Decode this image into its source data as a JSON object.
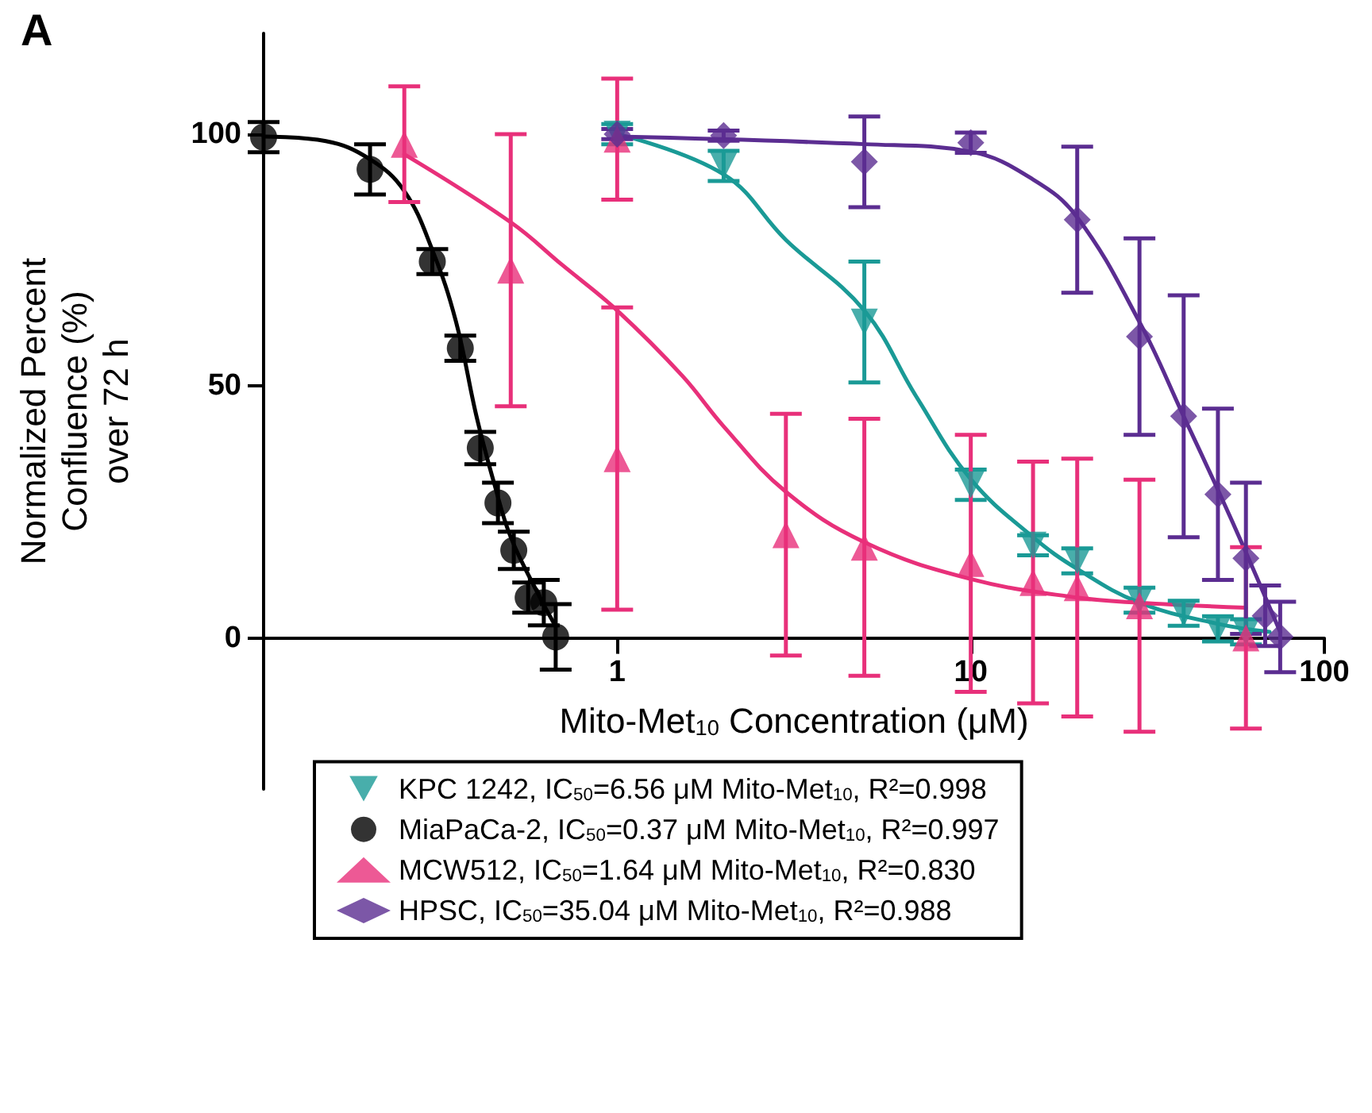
{
  "chart_data": {
    "type": "scatter",
    "title": "A",
    "xlabel": "Mito-Met$_{10}$ Concentration (μM)",
    "ylabel": "Normalized Percent Confluence (%) over 72 h",
    "log": "x",
    "xlim": [
      0.1,
      100
    ],
    "xticks": [
      1,
      10,
      100
    ],
    "ylim": [
      -30,
      120
    ],
    "yticks": [
      0,
      50,
      100
    ],
    "legend": "bottom",
    "series": [
      {
        "name": "KPC 1242, IC$_{50}$=6.56 μM Mito-Met$_{10}$, R²=0.998",
        "marker": "triangle-down",
        "color": "#1a9a96",
        "x": [
          1,
          2,
          5,
          10,
          15,
          20,
          30,
          40,
          50,
          60
        ],
        "values": [
          100,
          93.7,
          62.7,
          30.4,
          18.4,
          15.3,
          7.5,
          4.9,
          1.8,
          1.2
        ],
        "errors": [
          2,
          3,
          12,
          3,
          2,
          2.5,
          2.5,
          2.5,
          2.5,
          2.5
        ]
      },
      {
        "name": "MiaPaCa-2, IC$_{50}$=0.37 μM Mito-Met$_{10}$, R²=0.997",
        "marker": "circle",
        "color": "#000000",
        "x": [
          0.1,
          0.2,
          0.3,
          0.36,
          0.41,
          0.46,
          0.51,
          0.56,
          0.62,
          0.67
        ],
        "values": [
          99.4,
          93,
          74.7,
          57.5,
          37.7,
          26.8,
          17.4,
          8,
          7,
          0.2
        ],
        "errors": [
          3,
          5,
          2.5,
          2.5,
          3.2,
          4,
          3.7,
          3,
          4.5,
          6.5
        ]
      },
      {
        "name": "MCW512, IC$_{50}$=1.64 μM Mito-Met$_{10}$, R²=0.830",
        "marker": "triangle",
        "color": "#e8307a",
        "x": [
          0.25,
          0.5,
          1,
          1,
          3,
          5,
          10,
          15,
          20,
          30,
          60
        ],
        "values": [
          98,
          73,
          99,
          35.6,
          20.5,
          18,
          14.8,
          11,
          10,
          6.4,
          0
        ],
        "errors": [
          11.5,
          27,
          12,
          30,
          24,
          25.5,
          25.5,
          24,
          25.6,
          25,
          18
        ]
      },
      {
        "name": "HPSC, IC$_{50}$=35.04 μM Mito-Met$_{10}$, R²=0.988",
        "marker": "diamond",
        "color": "#5b2d91",
        "x": [
          1,
          2,
          5,
          10,
          20,
          30,
          40,
          50,
          60,
          68,
          75
        ],
        "values": [
          100,
          99.7,
          94.5,
          98.3,
          83,
          59.8,
          44,
          28.5,
          15.8,
          4.4,
          0.2
        ],
        "errors": [
          1,
          1,
          9,
          2,
          14.5,
          19.5,
          24,
          17,
          15,
          6,
          7
        ]
      },
      {
        "type": "line",
        "marker": "none",
        "color": "#1a9a96",
        "x": [
          1,
          2,
          3,
          5,
          7,
          10,
          15,
          20,
          30,
          50,
          70
        ],
        "values": [
          100,
          92,
          79,
          65,
          48,
          31.5,
          20,
          13.7,
          7,
          2.8,
          1.2
        ]
      },
      {
        "type": "line",
        "marker": "none",
        "color": "#000000",
        "x": [
          0.1,
          0.15,
          0.2,
          0.25,
          0.3,
          0.35,
          0.4,
          0.45,
          0.5,
          0.6,
          0.67
        ],
        "values": [
          99.5,
          98.6,
          95,
          88.7,
          77,
          62.8,
          44,
          30.4,
          20,
          8.5,
          2.3
        ]
      },
      {
        "type": "line",
        "marker": "none",
        "color": "#e8307a",
        "x": [
          0.25,
          0.5,
          0.7,
          1,
          1.53,
          2,
          3,
          5,
          10,
          20,
          30,
          60
        ],
        "values": [
          96,
          82.5,
          74,
          65,
          52,
          42,
          29,
          19,
          11.7,
          8,
          7,
          6
        ]
      },
      {
        "type": "line",
        "marker": "none",
        "color": "#5b2d91",
        "x": [
          1,
          5,
          10,
          15,
          20,
          30,
          40,
          50,
          60,
          75
        ],
        "values": [
          99.5,
          98,
          96.5,
          91,
          83.5,
          62.7,
          44,
          29.4,
          17,
          1.2
        ]
      }
    ]
  }
}
